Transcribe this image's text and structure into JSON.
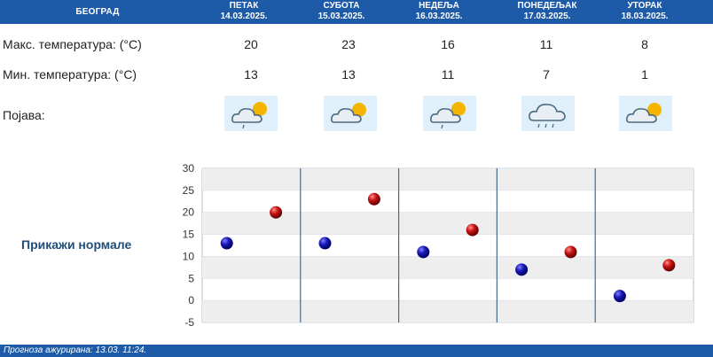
{
  "header": {
    "city": "БЕОГРАД",
    "days": [
      {
        "name": "ПЕТАК",
        "date": "14.03.2025."
      },
      {
        "name": "СУБОТА",
        "date": "15.03.2025."
      },
      {
        "name": "НЕДЕЉА",
        "date": "16.03.2025."
      },
      {
        "name": "ПОНЕДЕЉАК",
        "date": "17.03.2025."
      },
      {
        "name": "УТОРАК",
        "date": "18.03.2025."
      }
    ]
  },
  "rows": {
    "max_label": "Макс. температура: (°C)",
    "min_label": "Мин. температура: (°C)",
    "weather_label": "Појава:",
    "max_values": [
      "20",
      "23",
      "16",
      "11",
      "8"
    ],
    "min_values": [
      "13",
      "13",
      "11",
      "7",
      "1"
    ],
    "icons": [
      "partly-cloudy-light-rain-icon",
      "partly-cloudy-icon",
      "partly-cloudy-light-rain-icon",
      "cloudy-rain-icon",
      "partly-cloudy-icon"
    ]
  },
  "normale_link": "Прикажи нормале",
  "chart_data": {
    "type": "scatter",
    "categories": [
      "ПЕТАК",
      "СУБОТА",
      "НЕДЕЉА",
      "ПОНЕДЕЉАК",
      "УТОРАК"
    ],
    "series": [
      {
        "values": [
          13,
          13,
          11,
          7,
          1
        ],
        "color": "#1a1ab8"
      },
      {
        "values": [
          20,
          23,
          16,
          11,
          8
        ],
        "color": "#c81414"
      }
    ],
    "ylim": [
      -5,
      30
    ],
    "yticks": [
      "30",
      "25",
      "20",
      "15",
      "10",
      "5",
      "0",
      "-5"
    ],
    "grid": true
  },
  "footer": {
    "text": "Прогноза ажурирана:  13.03.  11:24."
  },
  "colors": {
    "header_bg": "#1d5aa8",
    "link": "#1f4e79",
    "band": "#eeeeee"
  }
}
